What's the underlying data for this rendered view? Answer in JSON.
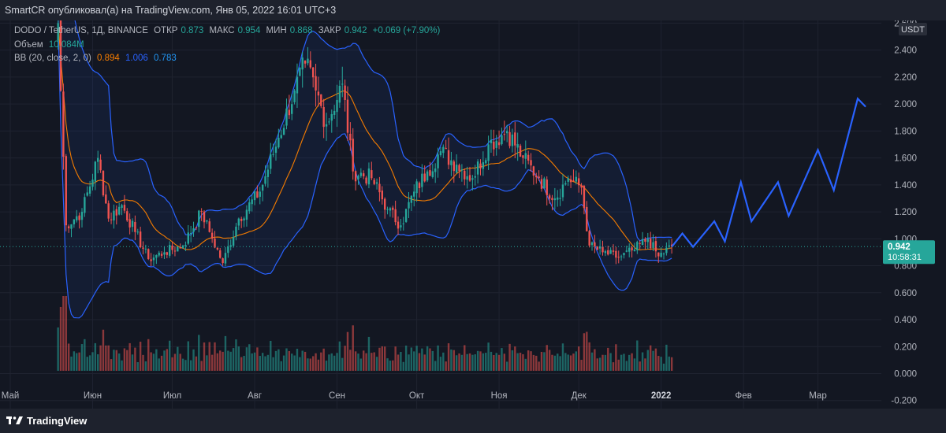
{
  "header": {
    "title": "SmartCR опубликовал(а) на TradingView.com, Янв 05, 2022 16:01 UTC+3"
  },
  "legend": {
    "symbol": "DODO / TetherUS, 1Д, BINANCE",
    "open_label": "ОТКР",
    "open": "0.873",
    "high_label": "МАКС",
    "high": "0.954",
    "low_label": "МИН",
    "low": "0.868",
    "close_label": "ЗАКР",
    "close": "0.942",
    "change": "+0.069 (+7.90%)",
    "volume_label": "Объем",
    "volume": "10.084M",
    "bb_label": "BB (20, close, 2, 0)",
    "bb_basis": "0.894",
    "bb_upper": "1.006",
    "bb_lower": "0.783"
  },
  "price_axis": {
    "currency": "USDT",
    "ticks": [
      "2.600",
      "2.400",
      "2.200",
      "2.000",
      "1.800",
      "1.600",
      "1.400",
      "1.200",
      "1.000",
      "0.800",
      "0.600",
      "0.400",
      "0.200",
      "0.000",
      "-0.200"
    ]
  },
  "price_label": {
    "price": "0.942",
    "countdown": "10:58:31"
  },
  "time_axis": {
    "labels": [
      "Май",
      "Июн",
      "Июл",
      "Авг",
      "Сен",
      "Окт",
      "Ноя",
      "Дек",
      "2022",
      "Фев",
      "Мар"
    ]
  },
  "footer": {
    "brand": "TradingView"
  },
  "colors": {
    "up": "#26a69a",
    "down": "#ef5350",
    "bb_band": "#2962ff",
    "basis": "#f57c00",
    "projection": "#2962ff",
    "background": "#131722"
  },
  "chart_data": {
    "type": "candlestick",
    "symbol": "DODO/USDT",
    "interval": "1D",
    "ylim": [
      -0.26,
      2.62
    ],
    "anchors": [
      [
        "2021-05-19",
        2.6
      ],
      [
        "2021-05-22",
        1.1
      ],
      [
        "2021-05-28",
        1.2
      ],
      [
        "2021-06-03",
        1.6
      ],
      [
        "2021-06-07",
        1.15
      ],
      [
        "2021-06-12",
        1.25
      ],
      [
        "2021-06-17",
        1.05
      ],
      [
        "2021-06-22",
        0.85
      ],
      [
        "2021-06-28",
        0.9
      ],
      [
        "2021-07-05",
        0.95
      ],
      [
        "2021-07-12",
        1.2
      ],
      [
        "2021-07-15",
        1.05
      ],
      [
        "2021-07-20",
        0.82
      ],
      [
        "2021-07-26",
        1.15
      ],
      [
        "2021-08-03",
        1.35
      ],
      [
        "2021-08-10",
        1.75
      ],
      [
        "2021-08-16",
        2.1
      ],
      [
        "2021-08-20",
        2.3
      ],
      [
        "2021-08-24",
        2.1
      ],
      [
        "2021-08-28",
        1.85
      ],
      [
        "2021-09-03",
        2.15
      ],
      [
        "2021-09-07",
        1.5
      ],
      [
        "2021-09-14",
        1.45
      ],
      [
        "2021-09-20",
        1.22
      ],
      [
        "2021-09-25",
        1.1
      ],
      [
        "2021-09-30",
        1.35
      ],
      [
        "2021-10-05",
        1.5
      ],
      [
        "2021-10-10",
        1.65
      ],
      [
        "2021-10-16",
        1.55
      ],
      [
        "2021-10-22",
        1.45
      ],
      [
        "2021-10-28",
        1.7
      ],
      [
        "2021-11-04",
        1.8
      ],
      [
        "2021-11-10",
        1.6
      ],
      [
        "2021-11-16",
        1.45
      ],
      [
        "2021-11-22",
        1.3
      ],
      [
        "2021-11-27",
        1.45
      ],
      [
        "2021-12-02",
        1.38
      ],
      [
        "2021-12-05",
        0.95
      ],
      [
        "2021-12-10",
        0.9
      ],
      [
        "2021-12-16",
        0.86
      ],
      [
        "2021-12-22",
        0.92
      ],
      [
        "2021-12-27",
        1.0
      ],
      [
        "2021-12-31",
        0.87
      ],
      [
        "2022-01-05",
        0.942
      ]
    ],
    "projection": [
      [
        "2022-01-05",
        0.94
      ],
      [
        "2022-01-09",
        1.04
      ],
      [
        "2022-01-13",
        0.94
      ],
      [
        "2022-01-21",
        1.13
      ],
      [
        "2022-01-25",
        0.98
      ],
      [
        "2022-01-31",
        1.42
      ],
      [
        "2022-02-04",
        1.13
      ],
      [
        "2022-02-14",
        1.42
      ],
      [
        "2022-02-18",
        1.17
      ],
      [
        "2022-03-01",
        1.66
      ],
      [
        "2022-03-07",
        1.36
      ],
      [
        "2022-03-16",
        2.04
      ],
      [
        "2022-03-19",
        1.98
      ]
    ],
    "last_price": 0.942,
    "volume_last": "10.084M"
  }
}
